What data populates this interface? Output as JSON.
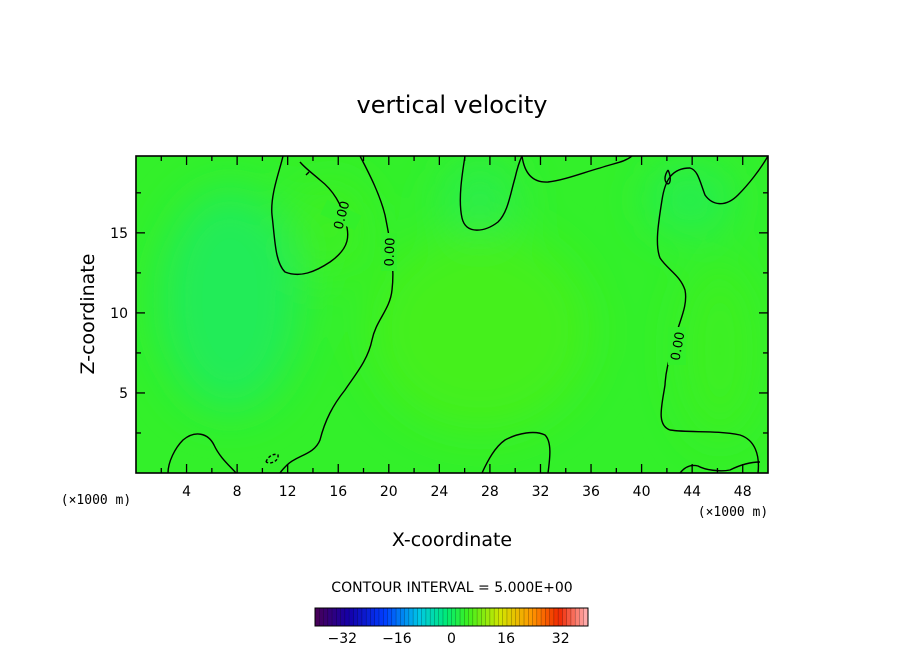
{
  "chart_data": {
    "type": "heatmap",
    "title": "vertical velocity",
    "xlabel": "X-coordinate",
    "ylabel": "Z-coordinate",
    "x_unit": "(×1000 m)",
    "x_unit_right": "(×1000 m)",
    "xlim": [
      0,
      50
    ],
    "ylim": [
      0,
      19.8
    ],
    "x_ticks": [
      4,
      8,
      12,
      16,
      20,
      24,
      28,
      32,
      36,
      40,
      44,
      48
    ],
    "y_ticks": [
      5,
      10,
      15
    ],
    "contour_interval_text": "CONTOUR INTERVAL = 5.000E+00",
    "contour_labels": [
      "0.00",
      "0.00",
      "0.00"
    ],
    "colorbar": {
      "min": -40,
      "max": 40,
      "ticks": [
        -32,
        -16,
        0,
        16,
        32
      ],
      "tick_labels": [
        "−32",
        "−16",
        "0",
        "16",
        "32"
      ]
    },
    "colors": {
      "field_background": "#33f02a",
      "cool_patch": "#2aee4c",
      "warm_patch": "#45f01e",
      "contour": "#000000"
    }
  }
}
